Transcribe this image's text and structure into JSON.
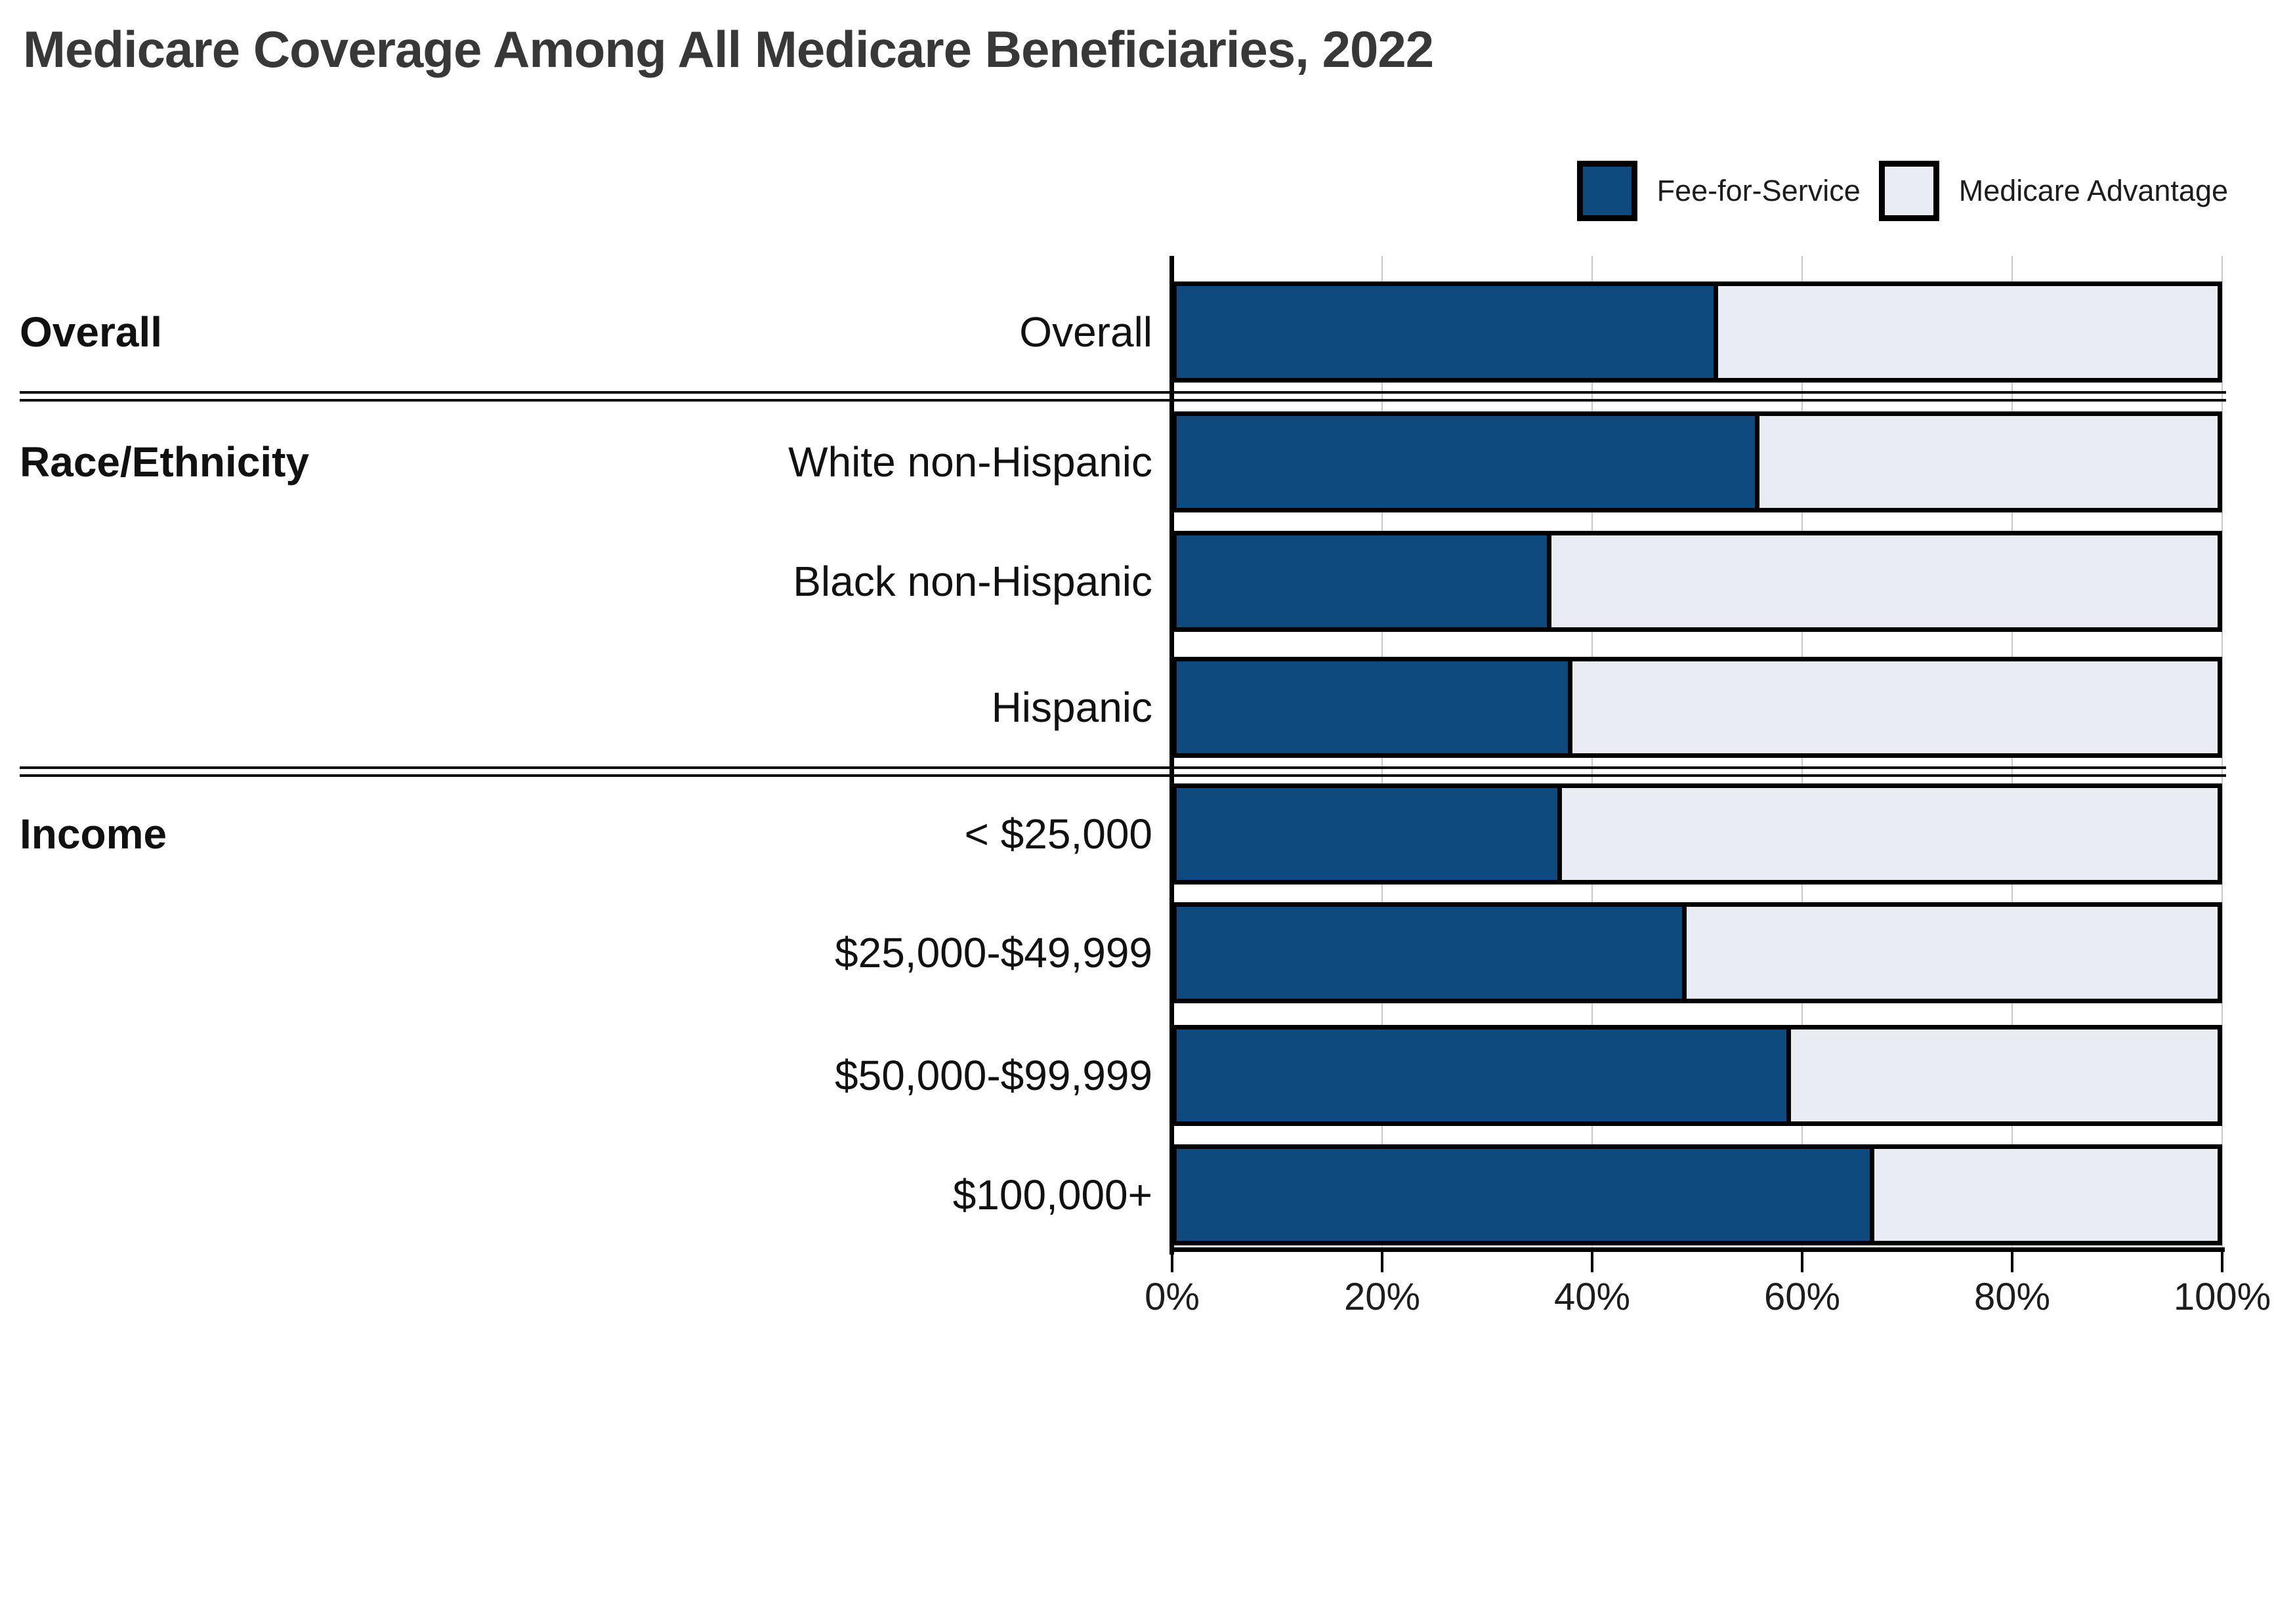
{
  "title": "Medicare Coverage Among All Medicare Beneficiaries, 2022",
  "colors": {
    "fee_for_service": "#0e4a7d",
    "medicare_advantage": "#e9edf3",
    "bar_border": "#000000",
    "gridline": "#c9c9c9",
    "title_text": "#383838"
  },
  "chart_data": {
    "type": "bar",
    "orientation": "horizontal",
    "stacked": true,
    "title": "Medicare Coverage Among All Medicare Beneficiaries, 2022",
    "categories": [
      "Overall",
      "White non-Hispanic",
      "Black non-Hispanic",
      "Hispanic",
      "< $25,000",
      "$25,000-$49,999",
      "$50,000-$99,999",
      "$100,000+"
    ],
    "groups": [
      {
        "label": "Overall",
        "rows": [
          0
        ]
      },
      {
        "label": "Race/Ethnicity",
        "rows": [
          1,
          2,
          3
        ]
      },
      {
        "label": "Income",
        "rows": [
          4,
          5,
          6,
          7
        ]
      }
    ],
    "series": [
      {
        "name": "Fee-for-Service",
        "color": "#0e4a7d",
        "values": [
          52,
          56,
          36,
          38,
          37,
          49,
          59,
          67
        ]
      },
      {
        "name": "Medicare Advantage",
        "color": "#e9edf3",
        "values": [
          48,
          44,
          64,
          62,
          63,
          51,
          41,
          33
        ]
      }
    ],
    "unit": "%",
    "xlabel": "",
    "ylabel": "",
    "xlim": [
      0,
      100
    ],
    "x_ticks": [
      "0%",
      "20%",
      "40%",
      "60%",
      "80%",
      "100%"
    ],
    "grid": true,
    "legend_position": "top-right"
  }
}
